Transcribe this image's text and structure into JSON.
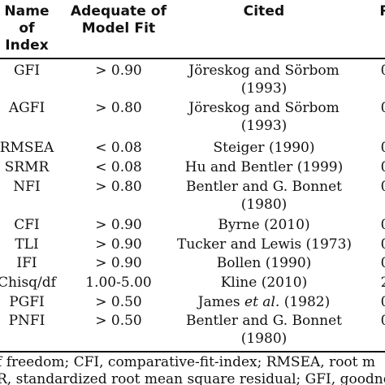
{
  "table": {
    "headers": {
      "name": "Name of Index",
      "fit": "Adequate of Model Fit",
      "cited": "Cited",
      "result": "R"
    },
    "rows": [
      {
        "name": "GFI",
        "fit": "> 0.90",
        "cited_l1": "Jöreskog and Sörbom",
        "cited_l2": "(1993)",
        "result": "0"
      },
      {
        "name": "AGFI",
        "fit": "> 0.80",
        "cited_l1": "Jöreskog and Sörbom",
        "cited_l2": "(1993)",
        "result": "0"
      },
      {
        "name": "RMSEA",
        "fit": "< 0.08",
        "cited_l1": "Steiger (1990)",
        "cited_l2": "",
        "result": "0"
      },
      {
        "name": "SRMR",
        "fit": "< 0.08",
        "cited_l1": "Hu and Bentler (1999)",
        "cited_l2": "",
        "result": "0"
      },
      {
        "name": "NFI",
        "fit": "> 0.80",
        "cited_l1": "Bentler and G. Bonnet",
        "cited_l2": "(1980)",
        "result": "0"
      },
      {
        "name": "CFI",
        "fit": "> 0.90",
        "cited_l1": "Byrne (2010)",
        "cited_l2": "",
        "result": "0"
      },
      {
        "name": "TLI",
        "fit": "> 0.90",
        "cited_l1": "Tucker and Lewis (1973)",
        "cited_l2": "",
        "result": "0"
      },
      {
        "name": "IFI",
        "fit": "> 0.90",
        "cited_l1": "Bollen (1990)",
        "cited_l2": "",
        "result": "0"
      },
      {
        "name": "Chisq/df",
        "fit": "1.00-5.00",
        "cited_l1": "Kline (2010)",
        "cited_l2": "",
        "result": "2"
      },
      {
        "name": "PGFI",
        "fit": "> 0.50",
        "cited_l1": "James",
        "cited_l1_italic": "et al.",
        "cited_l1_tail": "(1982)",
        "cited_l2": "",
        "result": "0"
      },
      {
        "name": "PNFI",
        "fit": "> 0.50",
        "cited_l1": "Bentler and G. Bonnet",
        "cited_l2": "(1980)",
        "result": "0"
      }
    ]
  },
  "footnote": {
    "line1": "f freedom; CFI, comparative-fit-index; RMSEA, root m",
    "line2": "R, standardized root mean square residual; GFI, goodness"
  }
}
